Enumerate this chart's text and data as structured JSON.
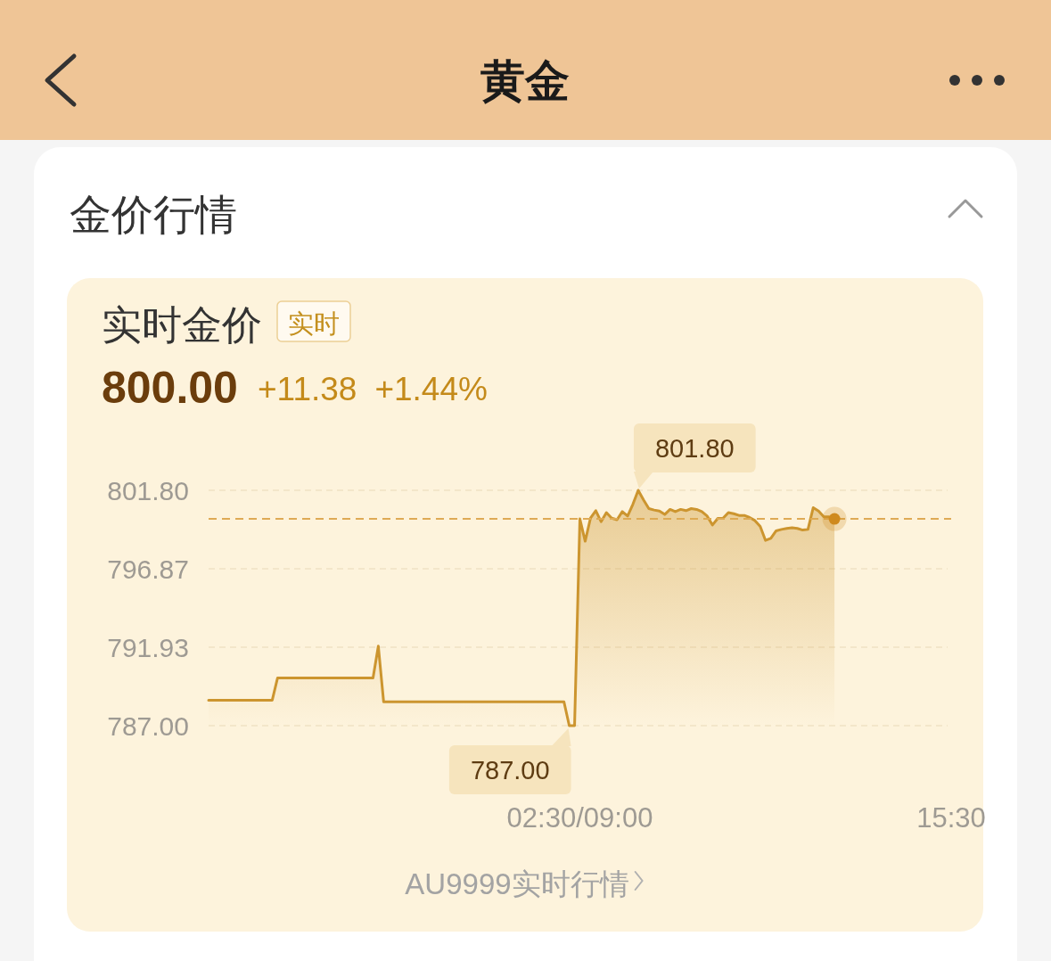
{
  "chart_data": {
    "type": "area",
    "title": "实时金价",
    "annotations": [
      "黄金",
      "金价行情",
      "实时",
      "800.00",
      "+11.38",
      "+1.44%",
      "AU9999实时行情",
      "801.80",
      "787.00"
    ],
    "categories": [
      null,
      null,
      null,
      null,
      null,
      null,
      null,
      null,
      null,
      null,
      null,
      null,
      null,
      null,
      null,
      null,
      null,
      null,
      null,
      null,
      null,
      null,
      null,
      null,
      null,
      null,
      null,
      null,
      null,
      null,
      null,
      null,
      null,
      null,
      null,
      null,
      null,
      null,
      null,
      null,
      null,
      null,
      null,
      null,
      null,
      null,
      null,
      null,
      null,
      null,
      null,
      null,
      null,
      null,
      null,
      null,
      null,
      null,
      null,
      null,
      null,
      null,
      null,
      null,
      null,
      null,
      null,
      null,
      null,
      null,
      "02:30/09:00",
      null,
      null,
      null,
      null,
      null,
      null,
      null,
      null,
      null,
      null,
      null,
      null,
      null,
      null,
      null,
      null,
      null,
      null,
      null,
      null,
      null,
      null,
      null,
      null,
      null,
      null,
      null,
      null,
      null,
      null,
      null,
      null,
      null,
      null,
      null,
      null,
      null,
      null,
      null,
      null,
      null,
      null,
      null,
      null,
      null,
      null,
      null,
      null,
      null,
      null,
      null,
      null,
      null,
      null,
      null,
      null,
      null,
      null,
      null,
      null,
      null,
      null,
      null,
      null,
      null,
      null,
      null,
      null,
      null,
      "15:30"
    ],
    "ylim": [
      787.0,
      801.8
    ],
    "yticks": [
      {
        "value": 787.0,
        "label": "787.00"
      },
      {
        "value": 791.93,
        "label": "791.93"
      },
      {
        "value": 796.87,
        "label": "796.87"
      },
      {
        "value": 801.8,
        "label": "801.80"
      }
    ],
    "grid": "y",
    "ref_lines": [
      {
        "axis": "y",
        "value": 800.0,
        "color": "#deaa55",
        "line_style": "dashed"
      }
    ],
    "series": [
      {
        "color": "#cc952f",
        "values": [
          788.6,
          788.6,
          788.6,
          788.6,
          788.6,
          788.6,
          788.6,
          788.6,
          788.6,
          788.6,
          788.6,
          788.6,
          788.6,
          790.0,
          790.0,
          790.0,
          790.0,
          790.0,
          790.0,
          790.0,
          790.0,
          790.0,
          790.0,
          790.0,
          790.0,
          790.0,
          790.0,
          790.0,
          790.0,
          790.0,
          790.0,
          790.0,
          792.0,
          788.5,
          788.5,
          788.5,
          788.5,
          788.5,
          788.5,
          788.5,
          788.5,
          788.5,
          788.5,
          788.5,
          788.5,
          788.5,
          788.5,
          788.5,
          788.5,
          788.5,
          788.5,
          788.5,
          788.5,
          788.5,
          788.5,
          788.5,
          788.5,
          788.5,
          788.5,
          788.5,
          788.5,
          788.5,
          788.5,
          788.5,
          788.5,
          788.5,
          788.5,
          788.5,
          787.0,
          787.0,
          800.0,
          798.6,
          800.05,
          800.52,
          799.83,
          800.4,
          800.05,
          799.95,
          800.46,
          800.18,
          800.93,
          801.8,
          801.2,
          800.65,
          800.56,
          800.5,
          800.28,
          800.6,
          800.46,
          800.6,
          800.52,
          800.65,
          800.6,
          800.46,
          800.18,
          799.62,
          800.03,
          800.05,
          800.4,
          800.33,
          800.22,
          800.22,
          800.09,
          799.9,
          799.53,
          798.65,
          798.78,
          799.25,
          799.34,
          799.4,
          799.44,
          799.4,
          799.3,
          799.34,
          800.71,
          800.5,
          800.13,
          800.13,
          800.0,
          null,
          null,
          null,
          null,
          null,
          null,
          null,
          null,
          null,
          null,
          null,
          null,
          null,
          null,
          null,
          null,
          null,
          null,
          null,
          null,
          null,
          null
        ]
      },
      {
        "type": "scatter",
        "color": "#cf8a1e",
        "marker": "circle",
        "values": [
          null,
          null,
          null,
          null,
          null,
          null,
          null,
          null,
          null,
          null,
          null,
          null,
          null,
          null,
          null,
          null,
          null,
          null,
          null,
          null,
          null,
          null,
          null,
          null,
          null,
          null,
          null,
          null,
          null,
          null,
          null,
          null,
          null,
          null,
          null,
          null,
          null,
          null,
          null,
          null,
          null,
          null,
          null,
          null,
          null,
          null,
          null,
          null,
          null,
          null,
          null,
          null,
          null,
          null,
          null,
          null,
          null,
          null,
          null,
          null,
          null,
          null,
          null,
          null,
          null,
          null,
          null,
          null,
          null,
          null,
          null,
          null,
          null,
          null,
          null,
          null,
          null,
          null,
          null,
          null,
          null,
          null,
          null,
          null,
          null,
          null,
          null,
          null,
          null,
          null,
          null,
          null,
          null,
          null,
          null,
          null,
          null,
          null,
          null,
          null,
          null,
          null,
          null,
          null,
          null,
          null,
          null,
          null,
          null,
          null,
          null,
          null,
          null,
          null,
          null,
          null,
          null,
          null,
          800.0,
          null,
          null,
          null,
          null,
          null,
          null,
          null,
          null,
          null,
          null,
          null,
          null,
          null,
          null,
          null,
          null,
          null,
          null,
          null,
          null,
          null,
          null
        ]
      }
    ]
  }
}
